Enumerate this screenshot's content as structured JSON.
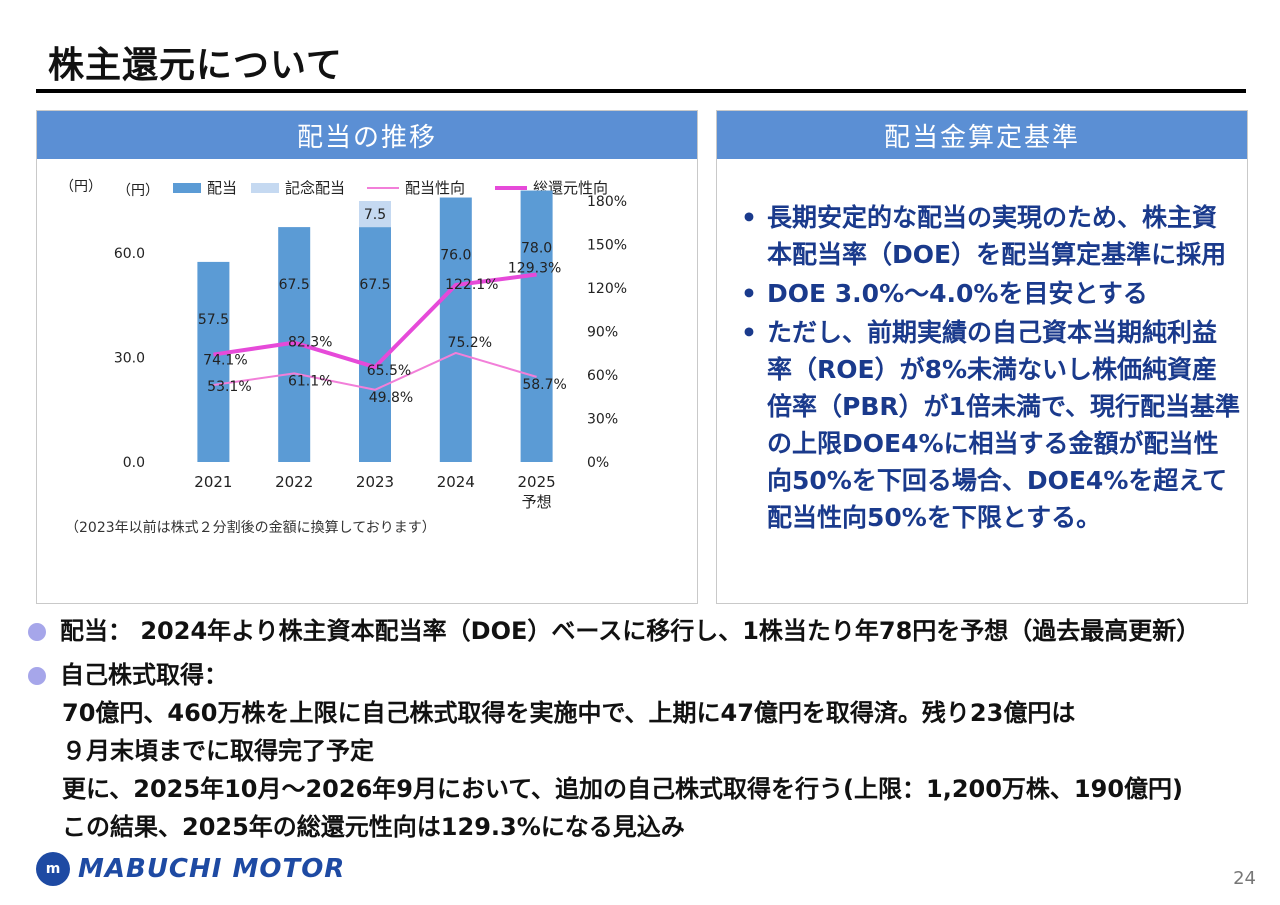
{
  "page": {
    "title": "株主還元について",
    "page_number": "24",
    "logo_text": "MABUCHI MOTOR"
  },
  "left_panel": {
    "header": "配当の推移",
    "note": "（2023年以前は株式２分割後の金額に換算しております）"
  },
  "right_panel": {
    "header": "配当金算定基準",
    "bullets": [
      "長期安定的な配当の実現のため、株主資本配当率（DOE）を配当算定基準に採用",
      "DOE 3.0%～4.0%を目安とする",
      "ただし、前期実績の自己資本当期純利益率（ROE）が8%未満ないし株価純資産倍率（PBR）が1倍未満で、現行配当基準の上限DOE4%に相当する金額が配当性向50%を下回る場合、DOE4%を超えて配当性向50%を下限とする。"
    ]
  },
  "bottom": {
    "dividend": "配当： 2024年より株主資本配当率（DOE）ベースに移行し、1株当たり年78円を予想（過去最高更新）",
    "buyback_title": "自己株式取得：",
    "buyback_lines": [
      "70億円、460万株を上限に自己株式取得を実施中で、上期に47億円を取得済。残り23億円は",
      "９月末頃までに取得完了予定",
      "更に、2025年10月～2026年9月において、追加の自己株式取得を行う(上限：1,200万株、190億円)",
      "この結果、2025年の総還元性向は129.3%になる見込み"
    ]
  },
  "chart_data": {
    "type": "bar",
    "categories": [
      "2021",
      "2022",
      "2023",
      "2024",
      "2025\n予想"
    ],
    "left_unit_labels": [
      "（円）",
      "（円）"
    ],
    "y_left": {
      "ticks": [
        "0.0",
        "30.0",
        "60.0"
      ],
      "range": [
        0,
        75
      ]
    },
    "y_right": {
      "ticks": [
        "0%",
        "30%",
        "60%",
        "90%",
        "120%",
        "150%",
        "180%"
      ],
      "range": [
        0,
        180
      ]
    },
    "legend": [
      "配当",
      "記念配当",
      "配当性向",
      "総還元性向"
    ],
    "colors": {
      "dividend": "#5b9bd5",
      "commemorative": "#c5d9f1",
      "payout": "#f27fd9",
      "total_return": "#e64ad9"
    },
    "series": [
      {
        "name": "配当",
        "kind": "bar",
        "axis": "left",
        "values": [
          57.5,
          67.5,
          67.5,
          76.0,
          78.0
        ],
        "labels": [
          "57.5",
          "67.5",
          "67.5",
          "76.0",
          "78.0"
        ]
      },
      {
        "name": "記念配当",
        "kind": "bar-stack",
        "axis": "left",
        "values": [
          0,
          0,
          7.5,
          0,
          0
        ],
        "labels": [
          "",
          "",
          "7.5",
          "",
          ""
        ]
      },
      {
        "name": "配当性向",
        "kind": "line",
        "axis": "right",
        "values": [
          53.1,
          61.1,
          49.8,
          75.2,
          58.7
        ],
        "labels": [
          "53.1%",
          "61.1%",
          "49.8%",
          "75.2%",
          "58.7%"
        ]
      },
      {
        "name": "総還元性向",
        "kind": "line",
        "axis": "right",
        "values": [
          74.1,
          82.3,
          65.5,
          122.1,
          129.3
        ],
        "labels": [
          "74.1%",
          "82.3%",
          "65.5%",
          "122.1%",
          "129.3%"
        ]
      }
    ]
  }
}
